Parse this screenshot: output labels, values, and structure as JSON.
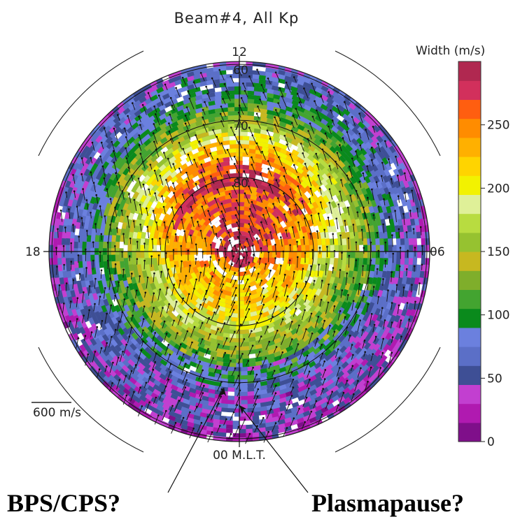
{
  "chart_data": {
    "type": "heatmap",
    "title": "Beam#4, All Kp",
    "mlt_labels": {
      "top": "12",
      "left": "18",
      "right": "06",
      "bottom": "00 M.L.T."
    },
    "latitude_labels": [
      "60",
      "70",
      "80"
    ],
    "colorbar": {
      "label": "Width (m/s)",
      "range": [
        0,
        300
      ],
      "ticks": [
        "0",
        "50",
        "100",
        "150",
        "200",
        "250"
      ],
      "colors": [
        "#7f0f8a",
        "#b01ab0",
        "#c23fd0",
        "#3e4f95",
        "#5b6fc7",
        "#6b80de",
        "#0a8a1c",
        "#43a430",
        "#7fae2b",
        "#c7b820",
        "#96c230",
        "#b8dc40",
        "#dff098",
        "#f2f200",
        "#ffd400",
        "#ffb000",
        "#ff8c00",
        "#ff5e10",
        "#d2305c",
        "#b02850"
      ]
    },
    "scale_label": "600 m/s",
    "annotations": [
      "BPS/CPS?",
      "Plasmapause?"
    ]
  }
}
